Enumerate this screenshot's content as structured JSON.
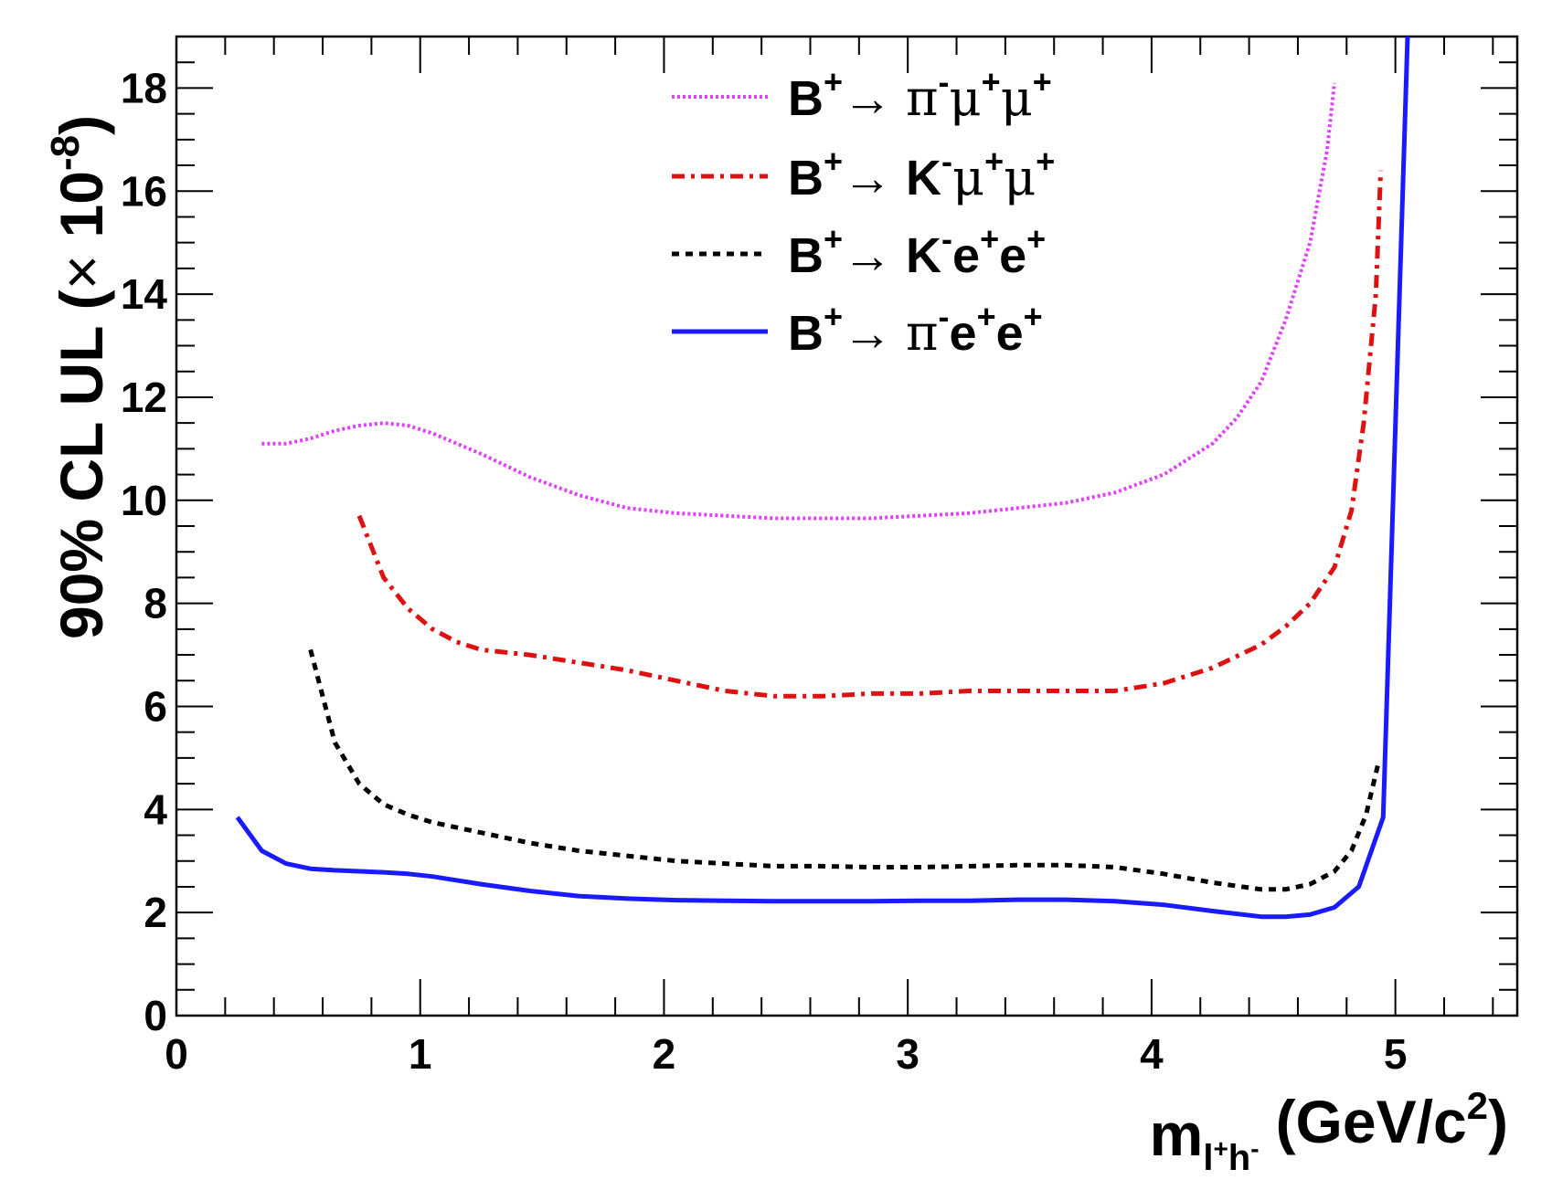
{
  "chart_data": {
    "type": "line",
    "title": "",
    "xlabel": {
      "main": "m",
      "sub_l": "l",
      "sub_plus": "+",
      "sub_h": "h",
      "sub_minus": "-",
      "units": "(GeV/c",
      "units_sup": "2",
      "units_close": ")"
    },
    "ylabel": {
      "main": "90% CL UL (",
      "times": "×",
      "mantissa": " 10",
      "exponent": "-8",
      "close": ")"
    },
    "xlim": [
      0,
      5.5
    ],
    "ylim": [
      0,
      19
    ],
    "x_major_ticks": [
      0,
      1,
      2,
      3,
      4,
      5
    ],
    "x_tick_labels": [
      "0",
      "1",
      "2",
      "3",
      "4",
      "5"
    ],
    "y_major_ticks": [
      0,
      2,
      4,
      6,
      8,
      10,
      12,
      14,
      16,
      18
    ],
    "y_tick_labels": [
      "0",
      "2",
      "4",
      "6",
      "8",
      "10",
      "12",
      "14",
      "16",
      "18"
    ],
    "legend_position": "top-center",
    "series": [
      {
        "name": "B+ → π- μ+ μ+",
        "label_parts": {
          "B": "B",
          "b_sup": "+",
          "arrow": "→",
          "h": "π",
          "h_sup": "-",
          "l1": "μ",
          "l1_sup": "+",
          "l2": "μ",
          "l2_sup": "+"
        },
        "color": "#e040fb",
        "style": "dotted",
        "x": [
          0.35,
          0.45,
          0.55,
          0.65,
          0.75,
          0.85,
          0.95,
          1.05,
          1.25,
          1.45,
          1.65,
          1.85,
          2.05,
          2.25,
          2.45,
          2.65,
          2.85,
          3.05,
          3.25,
          3.45,
          3.65,
          3.85,
          4.05,
          4.25,
          4.35,
          4.45,
          4.55,
          4.65,
          4.72,
          4.75
        ],
        "y": [
          11.1,
          11.1,
          11.2,
          11.35,
          11.45,
          11.5,
          11.45,
          11.3,
          10.9,
          10.45,
          10.1,
          9.85,
          9.75,
          9.7,
          9.65,
          9.65,
          9.65,
          9.7,
          9.75,
          9.85,
          9.95,
          10.15,
          10.5,
          11.1,
          11.6,
          12.3,
          13.5,
          15.0,
          16.8,
          18.1
        ]
      },
      {
        "name": "B+ → K- μ+ μ+",
        "label_parts": {
          "B": "B",
          "b_sup": "+",
          "arrow": "→",
          "h": "K",
          "h_sup": "-",
          "l1": "μ",
          "l1_sup": "+",
          "l2": "μ",
          "l2_sup": "+"
        },
        "color": "#dd1111",
        "style": "dashdot",
        "x": [
          0.75,
          0.85,
          0.95,
          1.05,
          1.15,
          1.25,
          1.45,
          1.65,
          1.85,
          2.05,
          2.25,
          2.45,
          2.65,
          2.85,
          3.05,
          3.25,
          3.45,
          3.65,
          3.85,
          4.05,
          4.25,
          4.45,
          4.55,
          4.65,
          4.75,
          4.82,
          4.87,
          4.92,
          4.94
        ],
        "y": [
          9.7,
          8.5,
          7.9,
          7.5,
          7.25,
          7.1,
          7.0,
          6.85,
          6.7,
          6.5,
          6.3,
          6.2,
          6.2,
          6.25,
          6.25,
          6.3,
          6.3,
          6.3,
          6.3,
          6.45,
          6.75,
          7.2,
          7.55,
          8.0,
          8.7,
          9.8,
          11.5,
          14.0,
          16.4
        ]
      },
      {
        "name": "B+ → K- e+ e+",
        "label_parts": {
          "B": "B",
          "b_sup": "+",
          "arrow": "→",
          "h": "K",
          "h_sup": "-",
          "l1": "e",
          "l1_sup": "+",
          "l2": "e",
          "l2_sup": "+"
        },
        "color": "#000000",
        "style": "dashed",
        "x": [
          0.55,
          0.6,
          0.65,
          0.75,
          0.85,
          0.95,
          1.05,
          1.25,
          1.45,
          1.65,
          1.85,
          2.05,
          2.25,
          2.45,
          2.65,
          2.85,
          3.05,
          3.25,
          3.45,
          3.65,
          3.85,
          4.05,
          4.25,
          4.45,
          4.55,
          4.65,
          4.75,
          4.82,
          4.88,
          4.93
        ],
        "y": [
          7.1,
          6.2,
          5.3,
          4.5,
          4.1,
          3.9,
          3.75,
          3.55,
          3.35,
          3.2,
          3.1,
          3.0,
          2.95,
          2.9,
          2.9,
          2.88,
          2.88,
          2.9,
          2.92,
          2.92,
          2.88,
          2.75,
          2.58,
          2.45,
          2.45,
          2.55,
          2.8,
          3.2,
          3.9,
          4.9
        ]
      },
      {
        "name": "B+ → π- e+ e+",
        "label_parts": {
          "B": "B",
          "b_sup": "+",
          "arrow": "→",
          "h": "π",
          "h_sup": "-",
          "l1": "e",
          "l1_sup": "+",
          "l2": "e",
          "l2_sup": "+"
        },
        "color": "#1a1aff",
        "style": "solid",
        "x": [
          0.25,
          0.35,
          0.45,
          0.55,
          0.65,
          0.75,
          0.85,
          0.95,
          1.05,
          1.25,
          1.45,
          1.65,
          1.85,
          2.05,
          2.25,
          2.45,
          2.65,
          2.85,
          3.05,
          3.25,
          3.45,
          3.65,
          3.85,
          4.05,
          4.25,
          4.45,
          4.55,
          4.65,
          4.75,
          4.85,
          4.95,
          5.05
        ],
        "y": [
          3.85,
          3.2,
          2.95,
          2.85,
          2.82,
          2.8,
          2.78,
          2.75,
          2.7,
          2.55,
          2.42,
          2.32,
          2.27,
          2.24,
          2.23,
          2.22,
          2.22,
          2.22,
          2.23,
          2.23,
          2.25,
          2.25,
          2.22,
          2.15,
          2.03,
          1.92,
          1.92,
          1.96,
          2.1,
          2.5,
          3.85,
          19.0
        ]
      }
    ]
  }
}
